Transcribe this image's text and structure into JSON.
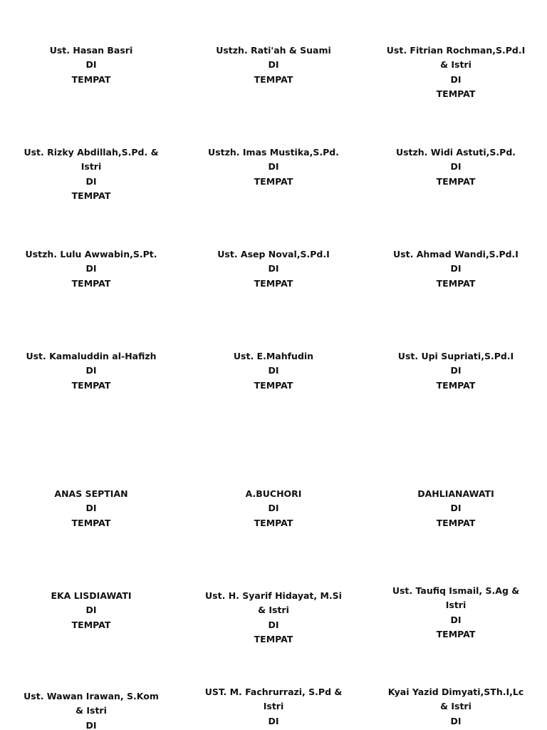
{
  "labels": [
    {
      "lines": [
        "Ust. Hasan Basri",
        "DI",
        "TEMPAT"
      ]
    },
    {
      "lines": [
        "Ustzh. Rati'ah & Suami",
        "DI",
        "TEMPAT"
      ]
    },
    {
      "lines": [
        "Ust. Fitrian Rochman,S.Pd.I",
        "& Istri",
        "DI",
        "TEMPAT"
      ]
    },
    {
      "lines": [
        "Ust. Rizky Abdillah,S.Pd. &",
        "Istri",
        "DI",
        "TEMPAT"
      ]
    },
    {
      "lines": [
        "Ustzh. Imas Mustika,S.Pd.",
        "DI",
        "TEMPAT"
      ]
    },
    {
      "lines": [
        "Ustzh. Widi Astuti,S.Pd.",
        "DI",
        "TEMPAT"
      ]
    },
    {
      "lines": [
        "Ustzh. Lulu Awwabin,S.Pt.",
        "DI",
        "TEMPAT"
      ]
    },
    {
      "lines": [
        "Ust. Asep Noval,S.Pd.I",
        "DI",
        "TEMPAT"
      ]
    },
    {
      "lines": [
        "Ust. Ahmad Wandi,S.Pd.I",
        "DI",
        "TEMPAT"
      ]
    },
    {
      "lines": [
        "Ust. Kamaluddin al-Hafizh",
        "DI",
        "TEMPAT"
      ]
    },
    {
      "lines": [
        "Ust. E.Mahfudin",
        "DI",
        "TEMPAT"
      ]
    },
    {
      "lines": [
        "Ust. Upi Supriati,S.Pd.I",
        "DI",
        "TEMPAT"
      ]
    },
    {
      "lines": [
        "ANAS SEPTIAN",
        "DI",
        "TEMPAT"
      ]
    },
    {
      "lines": [
        "A.BUCHORI",
        "DI",
        "TEMPAT"
      ]
    },
    {
      "lines": [
        "DAHLIANAWATI",
        "DI",
        "TEMPAT"
      ]
    },
    {
      "lines": [
        "EKA LISDIAWATI",
        "DI",
        "TEMPAT"
      ]
    },
    {
      "lines": [
        "Ust. H. Syarif Hidayat, M.Si",
        "& Istri",
        "DI",
        "TEMPAT"
      ]
    },
    {
      "lines": [
        "Ust. Taufiq Ismail, S.Ag &",
        "Istri",
        "DI",
        "TEMPAT"
      ]
    },
    {
      "lines": [
        "Ust. Wawan Irawan, S.Kom",
        "& Istri",
        "DI"
      ]
    },
    {
      "lines": [
        "UST. M. Fachrurrazi, S.Pd &",
        "Istri",
        "DI"
      ]
    },
    {
      "lines": [
        "Kyai Yazid Dimyati,STh.I,Lc",
        "& Istri",
        "DI"
      ]
    }
  ]
}
